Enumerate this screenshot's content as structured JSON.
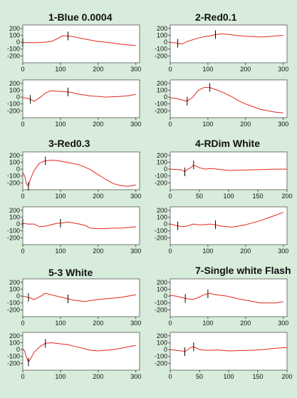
{
  "style": {
    "background": "#d7ecda",
    "plot_bg": "#ffffff",
    "trace_color": "#e3261b",
    "marker_color": "#000000"
  },
  "panels": [
    {
      "title": "1-Blue 0.0004"
    },
    {
      "title": "2-Red0.1"
    },
    {
      "title": "3-Red0.3"
    },
    {
      "title": "4-RDim White"
    },
    {
      "title": "5-3 White"
    },
    {
      "title": "7-Single white Flash"
    }
  ],
  "chart_data": [
    {
      "type": "line",
      "xlim": [
        0,
        310
      ],
      "ylim": [
        -300,
        250
      ],
      "xticks": [
        0,
        100,
        200,
        300
      ],
      "yticks": [
        200,
        100,
        0,
        -100,
        -200
      ],
      "x": [
        0,
        15,
        30,
        45,
        60,
        75,
        90,
        105,
        120,
        135,
        150,
        165,
        180,
        200,
        220,
        240,
        260,
        280,
        300
      ],
      "y": [
        -5,
        -5,
        -8,
        -4,
        0,
        10,
        45,
        90,
        90,
        80,
        60,
        45,
        30,
        10,
        0,
        -15,
        -30,
        -40,
        -50
      ],
      "markers": [
        0,
        120
      ]
    },
    {
      "type": "line",
      "xlim": [
        0,
        310
      ],
      "ylim": [
        -300,
        250
      ],
      "xticks": [
        0,
        100,
        200,
        300
      ],
      "yticks": [
        200,
        100,
        0,
        -100,
        -200
      ],
      "x": [
        0,
        15,
        30,
        45,
        60,
        75,
        90,
        105,
        120,
        135,
        150,
        165,
        180,
        200,
        220,
        240,
        260,
        280,
        300
      ],
      "y": [
        -5,
        -10,
        -30,
        10,
        35,
        60,
        80,
        90,
        110,
        120,
        115,
        105,
        95,
        85,
        80,
        75,
        80,
        90,
        100
      ],
      "markers": [
        20,
        120
      ]
    },
    {
      "type": "line",
      "xlim": [
        0,
        310
      ],
      "ylim": [
        -300,
        250
      ],
      "xticks": [
        0,
        100,
        200,
        300
      ],
      "yticks": [
        200,
        100,
        0,
        -100,
        -200
      ],
      "x": [
        0,
        15,
        30,
        45,
        60,
        75,
        90,
        105,
        120,
        135,
        150,
        165,
        180,
        200,
        220,
        240,
        260,
        280,
        300
      ],
      "y": [
        -10,
        -20,
        -60,
        -10,
        60,
        90,
        85,
        80,
        75,
        60,
        40,
        30,
        15,
        10,
        0,
        5,
        10,
        20,
        40
      ],
      "markers": [
        20,
        120
      ]
    },
    {
      "type": "line",
      "xlim": [
        0,
        310
      ],
      "ylim": [
        -300,
        250
      ],
      "xticks": [
        0,
        100,
        200,
        300
      ],
      "yticks": [
        200,
        100,
        0,
        -100,
        -200
      ],
      "x": [
        0,
        15,
        30,
        45,
        60,
        75,
        90,
        105,
        120,
        135,
        150,
        165,
        180,
        200,
        220,
        240,
        260,
        280,
        300
      ],
      "y": [
        -10,
        -20,
        -40,
        -60,
        0,
        100,
        140,
        140,
        110,
        80,
        40,
        0,
        -50,
        -100,
        -140,
        -180,
        -200,
        -220,
        -230
      ],
      "markers": [
        45,
        105
      ]
    },
    {
      "type": "line",
      "xlim": [
        0,
        310
      ],
      "ylim": [
        -300,
        250
      ],
      "xticks": [
        0,
        100,
        200,
        300
      ],
      "yticks": [
        200,
        100,
        0,
        -100,
        -200
      ],
      "x": [
        0,
        5,
        10,
        15,
        20,
        30,
        45,
        60,
        75,
        90,
        105,
        120,
        135,
        150,
        165,
        180,
        200,
        220,
        240,
        260,
        280,
        300
      ],
      "y": [
        -50,
        -100,
        -220,
        -250,
        -150,
        -20,
        90,
        120,
        130,
        125,
        110,
        95,
        80,
        60,
        30,
        -10,
        -80,
        -150,
        -210,
        -240,
        -250,
        -230
      ],
      "markers": [
        15,
        60
      ]
    },
    {
      "type": "line",
      "xlim": [
        0,
        200
      ],
      "ylim": [
        -300,
        250
      ],
      "xticks": [
        0,
        50,
        100,
        150,
        200
      ],
      "yticks": [
        200,
        100,
        0,
        -100,
        -200
      ],
      "x": [
        0,
        10,
        20,
        25,
        30,
        35,
        40,
        50,
        60,
        70,
        80,
        100,
        120,
        140,
        160,
        180,
        200
      ],
      "y": [
        0,
        -5,
        -10,
        -40,
        0,
        20,
        60,
        20,
        0,
        10,
        0,
        -20,
        -15,
        -10,
        -5,
        0,
        0
      ],
      "markers": [
        25,
        40
      ]
    },
    {
      "type": "line",
      "xlim": [
        0,
        310
      ],
      "ylim": [
        -300,
        250
      ],
      "xticks": [
        0,
        100,
        200,
        300
      ],
      "yticks": [
        200,
        100,
        0,
        -100,
        -200
      ],
      "x": [
        0,
        15,
        30,
        45,
        60,
        75,
        90,
        105,
        120,
        135,
        150,
        165,
        180,
        200,
        220,
        240,
        260,
        280,
        300
      ],
      "y": [
        10,
        0,
        0,
        -40,
        -30,
        -10,
        10,
        15,
        30,
        15,
        0,
        -20,
        -60,
        -70,
        -65,
        -60,
        -60,
        -50,
        -40
      ],
      "markers": [
        0,
        100
      ]
    },
    {
      "type": "line",
      "xlim": [
        0,
        310
      ],
      "ylim": [
        -300,
        250
      ],
      "xticks": [
        0,
        100,
        200,
        300
      ],
      "yticks": [
        200,
        100,
        0,
        -100,
        -200
      ],
      "x": [
        0,
        15,
        30,
        45,
        60,
        75,
        90,
        105,
        120,
        135,
        150,
        165,
        180,
        200,
        220,
        240,
        260,
        280,
        300
      ],
      "y": [
        0,
        -20,
        -40,
        -30,
        0,
        -10,
        -10,
        0,
        -10,
        -30,
        -40,
        -45,
        -30,
        -10,
        20,
        50,
        90,
        130,
        170
      ],
      "markers": [
        20,
        120
      ]
    },
    {
      "type": "line",
      "xlim": [
        0,
        310
      ],
      "ylim": [
        -300,
        250
      ],
      "xticks": [
        0,
        100,
        200,
        300
      ],
      "yticks": [
        200,
        100,
        0,
        -100,
        -200
      ],
      "x": [
        0,
        15,
        30,
        45,
        60,
        75,
        90,
        105,
        120,
        135,
        150,
        165,
        180,
        200,
        220,
        240,
        260,
        280,
        300
      ],
      "y": [
        0,
        -20,
        -50,
        -10,
        40,
        20,
        0,
        -20,
        -40,
        -60,
        -70,
        -80,
        -65,
        -50,
        -40,
        -30,
        -20,
        0,
        20
      ],
      "markers": [
        15,
        120
      ]
    },
    {
      "type": "line",
      "xlim": [
        0,
        310
      ],
      "ylim": [
        -300,
        250
      ],
      "xticks": [
        0,
        100,
        200,
        300
      ],
      "yticks": [
        200,
        100,
        0,
        -100,
        -200
      ],
      "x": [
        0,
        15,
        30,
        45,
        60,
        75,
        90,
        105,
        120,
        135,
        150,
        165,
        180,
        200,
        220,
        240,
        260,
        280,
        300
      ],
      "y": [
        10,
        0,
        -20,
        -40,
        -50,
        -20,
        20,
        40,
        20,
        10,
        0,
        -20,
        -40,
        -60,
        -80,
        -100,
        -100,
        -100,
        -80
      ],
      "markers": [
        40,
        100
      ]
    },
    {
      "type": "line",
      "xlim": [
        0,
        310
      ],
      "ylim": [
        -300,
        250
      ],
      "xticks": [
        0,
        100,
        200,
        300
      ],
      "yticks": [
        200,
        100,
        0,
        -100,
        -200
      ],
      "x": [
        0,
        5,
        10,
        15,
        20,
        30,
        45,
        60,
        75,
        90,
        105,
        120,
        135,
        150,
        165,
        180,
        200,
        220,
        240,
        260,
        280,
        300
      ],
      "y": [
        10,
        -20,
        -120,
        -180,
        -140,
        -40,
        40,
        90,
        100,
        90,
        80,
        70,
        50,
        30,
        10,
        -10,
        -20,
        -10,
        0,
        20,
        40,
        60
      ],
      "markers": [
        15,
        60
      ]
    },
    {
      "type": "line",
      "xlim": [
        0,
        200
      ],
      "ylim": [
        -300,
        250
      ],
      "xticks": [
        0,
        50,
        100,
        150,
        200
      ],
      "yticks": [
        200,
        100,
        0,
        -100,
        -200
      ],
      "x": [
        0,
        10,
        20,
        25,
        30,
        35,
        40,
        50,
        60,
        70,
        80,
        100,
        120,
        140,
        160,
        180,
        200
      ],
      "y": [
        0,
        -10,
        -20,
        -30,
        0,
        30,
        40,
        0,
        -10,
        -10,
        -5,
        -20,
        -15,
        -10,
        0,
        20,
        30
      ],
      "markers": [
        25,
        40
      ]
    }
  ]
}
